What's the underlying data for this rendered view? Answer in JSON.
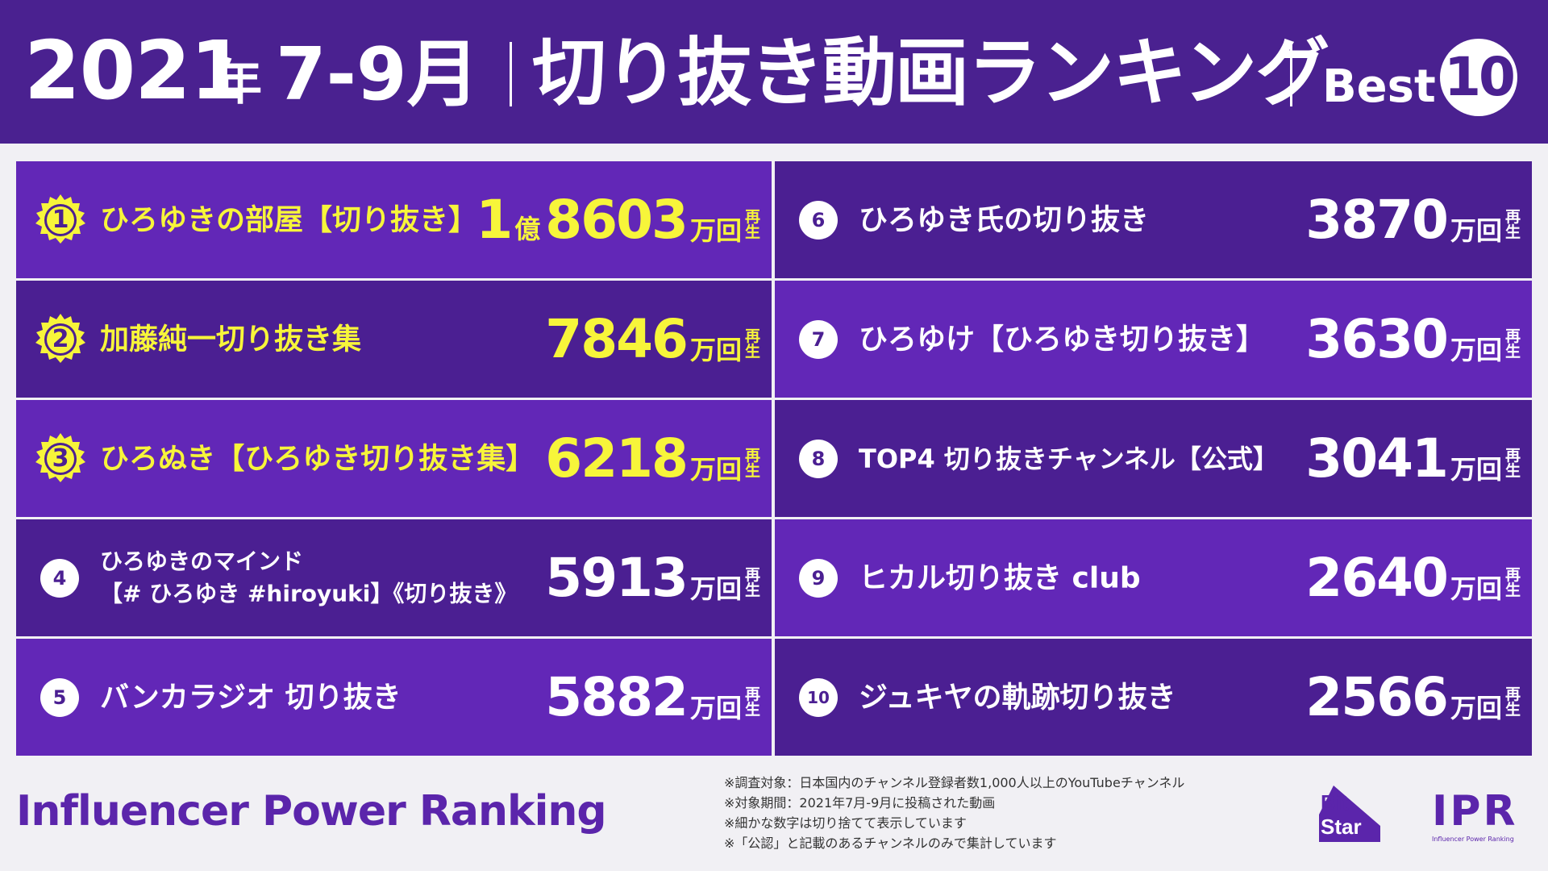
{
  "header": {
    "year": "2021",
    "nen": "年",
    "months": "7-9月",
    "title": "切り抜き動画ランキング",
    "best_label": "Best",
    "best_count": "10"
  },
  "colors": {
    "purple_dark": "#4a2190",
    "purple_light": "#6227b7",
    "yellow": "#f7f53a",
    "background": "#f1f0f4"
  },
  "rankings": [
    {
      "rank": "1",
      "name": "ひろゆきの部屋【切り抜き】",
      "oku": "1",
      "oku_unit": "億",
      "value": "8603",
      "unit": "万回",
      "play_top": "再",
      "play_bottom": "生"
    },
    {
      "rank": "2",
      "name": "加藤純一切り抜き集",
      "value": "7846",
      "unit": "万回",
      "play_top": "再",
      "play_bottom": "生"
    },
    {
      "rank": "3",
      "name": "ひろぬき【ひろゆき切り抜き集】",
      "value": "6218",
      "unit": "万回",
      "play_top": "再",
      "play_bottom": "生"
    },
    {
      "rank": "4",
      "name_line1": "ひろゆきのマインド",
      "name_line2": "【# ひろゆき #hiroyuki】《切り抜き》",
      "value": "5913",
      "unit": "万回",
      "play_top": "再",
      "play_bottom": "生"
    },
    {
      "rank": "5",
      "name": "バンカラジオ 切り抜き",
      "value": "5882",
      "unit": "万回",
      "play_top": "再",
      "play_bottom": "生"
    },
    {
      "rank": "6",
      "name": "ひろゆき氏の切り抜き",
      "value": "3870",
      "unit": "万回",
      "play_top": "再",
      "play_bottom": "生"
    },
    {
      "rank": "7",
      "name": "ひろゆけ【ひろゆき切り抜き】",
      "value": "3630",
      "unit": "万回",
      "play_top": "再",
      "play_bottom": "生"
    },
    {
      "rank": "8",
      "name": "TOP4 切り抜きチャンネル【公式】",
      "value": "3041",
      "unit": "万回",
      "play_top": "再",
      "play_bottom": "生"
    },
    {
      "rank": "9",
      "name": "ヒカル切り抜き club",
      "value": "2640",
      "unit": "万回",
      "play_top": "再",
      "play_bottom": "生"
    },
    {
      "rank": "10",
      "name": "ジュキヤの軌跡切り抜き",
      "value": "2566",
      "unit": "万回",
      "play_top": "再",
      "play_bottom": "生"
    }
  ],
  "footer": {
    "brand": "Influencer Power Ranking",
    "notes": [
      "※調査対象：日本国内のチャンネル登録者数1,000人以上のYouTubeチャンネル",
      "※対象期間：2021年7月-9月に投稿された動画",
      "※細かな数字は切り捨てて表示しています",
      "※「公認」と記載のあるチャンネルのみで集計しています"
    ],
    "logo_bitstar_line1": "Bit",
    "logo_bitstar_line2": "Star",
    "logo_ipr": "IPR",
    "logo_ipr_sub": "Influencer Power Ranking"
  }
}
